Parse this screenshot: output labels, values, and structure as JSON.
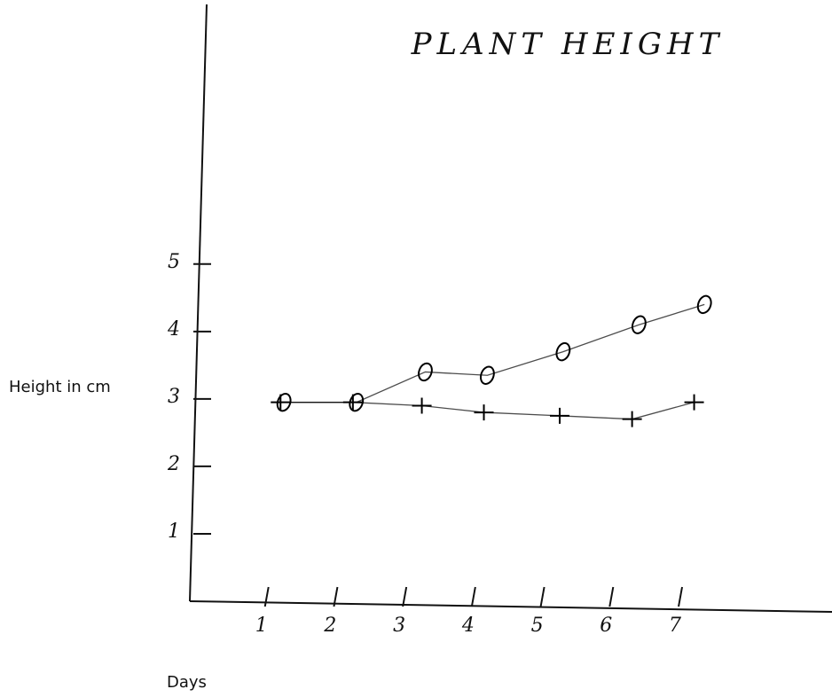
{
  "chart_data": {
    "type": "line",
    "title": "PLANT HEIGHT",
    "x_label": "Days",
    "y_label": "Height in cm",
    "xlim": [
      0,
      9.2
    ],
    "xticks": [
      1,
      2,
      3,
      4,
      5,
      6,
      7
    ],
    "ylim": [
      0,
      8.85
    ],
    "yticks": [
      1,
      2,
      3,
      4,
      5
    ],
    "grid": false,
    "series": [
      {
        "marker": "circle",
        "color": "#000000",
        "x": [
          1.25,
          2.3,
          3.3,
          4.2,
          5.3,
          6.4,
          7.35
        ],
        "values": [
          2.95,
          2.95,
          3.4,
          3.35,
          3.7,
          4.1,
          4.4
        ]
      },
      {
        "marker": "plus",
        "color": "#000000",
        "x": [
          1.2,
          2.25,
          3.25,
          4.15,
          5.25,
          6.3,
          7.2
        ],
        "values": [
          2.95,
          2.95,
          2.9,
          2.8,
          2.75,
          2.7,
          2.95
        ]
      }
    ]
  }
}
